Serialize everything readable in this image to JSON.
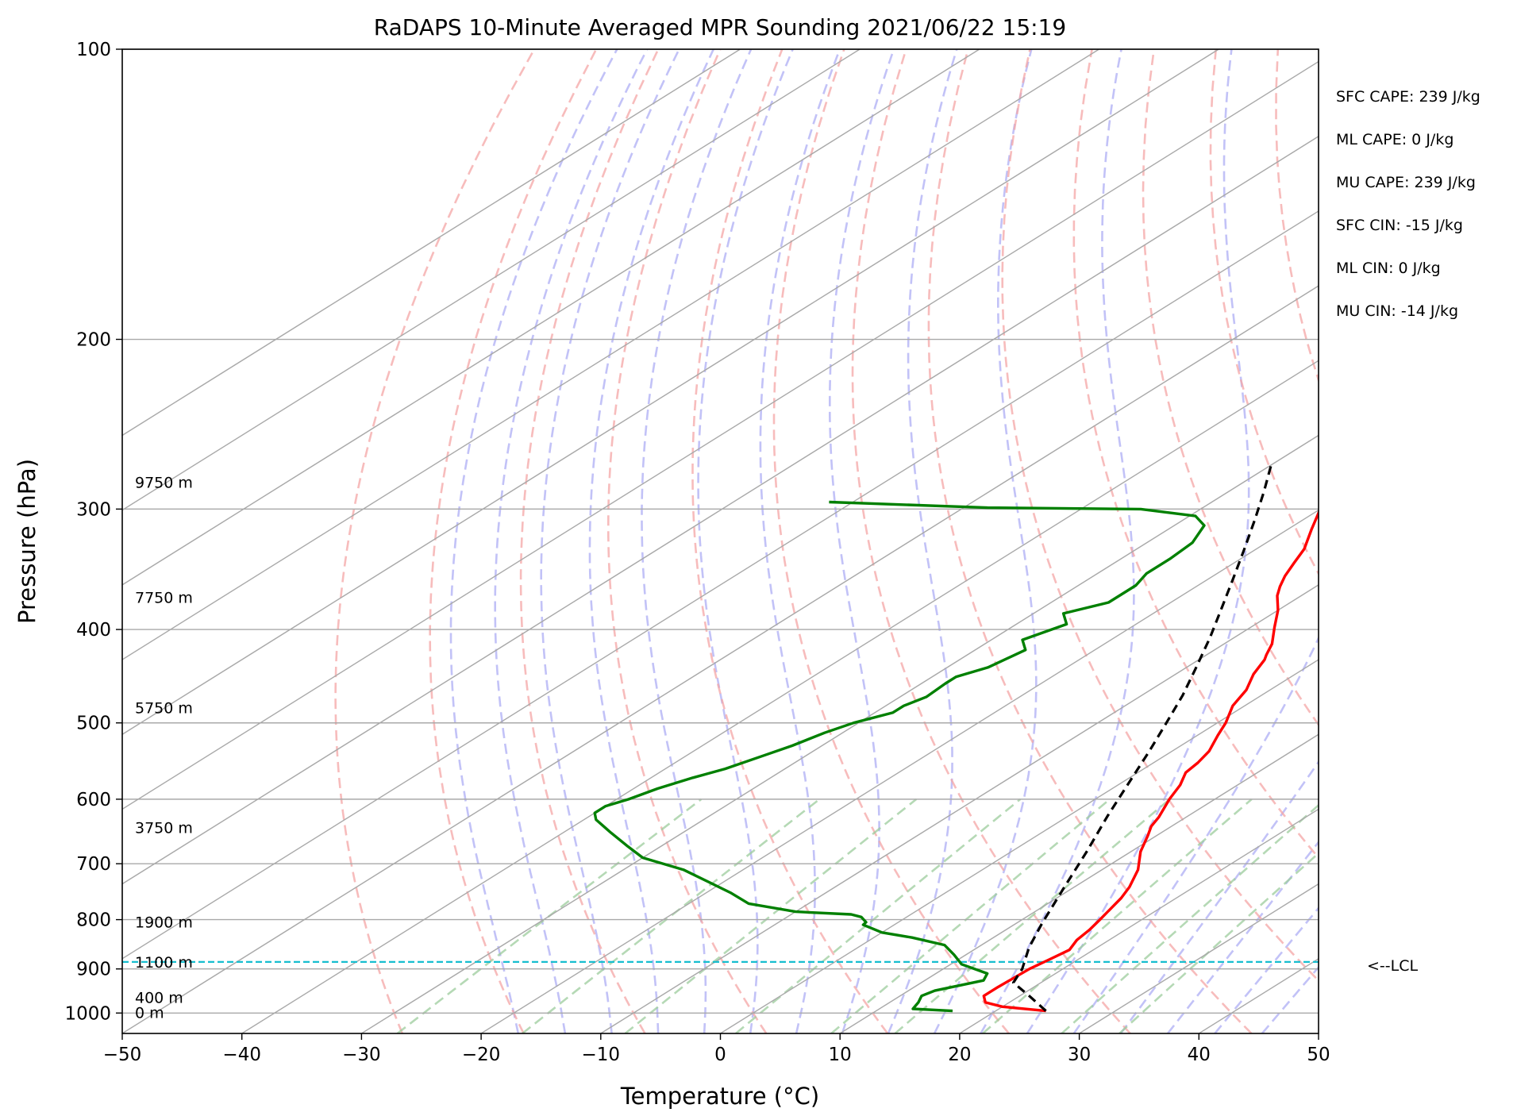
{
  "chart_data": {
    "type": "line",
    "title": "RaDAPS 10-Minute Averaged MPR Sounding 2021/06/22 15:19",
    "xlabel": "Temperature (°C)",
    "ylabel": "Pressure (hPa)",
    "xlim": [
      -50,
      50
    ],
    "ylim": [
      1050,
      100
    ],
    "y_scale": "log",
    "skew": "skew-T log-p",
    "grid": true,
    "x_ticks": [
      "−50",
      "−40",
      "−30",
      "−20",
      "−10",
      "0",
      "10",
      "20",
      "30",
      "40",
      "50"
    ],
    "x_tick_values": [
      -50,
      -40,
      -30,
      -20,
      -10,
      0,
      10,
      20,
      30,
      40,
      50
    ],
    "y_ticks": [
      "100",
      "200",
      "300",
      "400",
      "500",
      "600",
      "700",
      "800",
      "900",
      "1000"
    ],
    "y_tick_values": [
      100,
      200,
      300,
      400,
      500,
      600,
      700,
      800,
      900,
      1000
    ],
    "colors": {
      "temperature": "#ff0000",
      "dewpoint": "#008000",
      "parcel": "#000000",
      "lcl": "#17becf",
      "dry_adiabat": "#f4a6a6",
      "moist_adiabat": "#a8a8f4",
      "mixing_ratio": "#9ccc9c",
      "isotherm": "#a9a9a9"
    },
    "series": [
      {
        "role": "temperature",
        "points": [
          [
            24.2,
            995
          ],
          [
            20,
            985
          ],
          [
            18,
            975
          ],
          [
            17,
            960
          ],
          [
            17,
            940
          ],
          [
            17.1,
            920
          ],
          [
            17.2,
            900
          ],
          [
            17.6,
            880
          ],
          [
            18,
            860
          ],
          [
            17.3,
            840
          ],
          [
            17,
            820
          ],
          [
            16.5,
            800
          ],
          [
            15.4,
            760
          ],
          [
            14.6,
            740
          ],
          [
            13,
            710
          ],
          [
            10.8,
            680
          ],
          [
            9.3,
            655
          ],
          [
            8.3,
            640
          ],
          [
            7.7,
            626
          ],
          [
            6.2,
            600
          ],
          [
            5.2,
            580
          ],
          [
            4,
            563
          ],
          [
            3.7,
            550
          ],
          [
            3.1,
            535
          ],
          [
            1.7,
            515
          ],
          [
            0.7,
            500
          ],
          [
            -1,
            480
          ],
          [
            -2,
            462
          ],
          [
            -3.5,
            445
          ],
          [
            -4.5,
            430
          ],
          [
            -5,
            425
          ],
          [
            -6,
            414
          ],
          [
            -8,
            398
          ],
          [
            -10,
            382
          ],
          [
            -12,
            369
          ],
          [
            -13,
            361
          ],
          [
            -14,
            352
          ],
          [
            -15,
            341
          ],
          [
            -16,
            330
          ],
          [
            -18,
            315
          ],
          [
            -20,
            300
          ],
          [
            -22,
            283
          ],
          [
            -24,
            272
          ]
        ]
      },
      {
        "role": "dewpoint",
        "points": [
          [
            16.4,
            995
          ],
          [
            12.8,
            990
          ],
          [
            12.4,
            975
          ],
          [
            11.8,
            960
          ],
          [
            12.2,
            948
          ],
          [
            14.9,
            925
          ],
          [
            14.3,
            910
          ],
          [
            10.9,
            890
          ],
          [
            9,
            870
          ],
          [
            6.9,
            850
          ],
          [
            3.2,
            835
          ],
          [
            0,
            825
          ],
          [
            -2.6,
            810
          ],
          [
            -2.7,
            805
          ],
          [
            -3.8,
            795
          ],
          [
            -5,
            790
          ],
          [
            -10,
            785
          ],
          [
            -15,
            770
          ],
          [
            -18,
            750
          ],
          [
            -25,
            710
          ],
          [
            -30,
            690
          ],
          [
            -33,
            670
          ],
          [
            -36,
            650
          ],
          [
            -39,
            630
          ],
          [
            -40,
            620
          ],
          [
            -40,
            610
          ],
          [
            -39,
            600
          ],
          [
            -38,
            585
          ],
          [
            -36.5,
            570
          ],
          [
            -35,
            558
          ],
          [
            -33.5,
            540
          ],
          [
            -32.5,
            528
          ],
          [
            -31.5,
            512
          ],
          [
            -30.4,
            500
          ],
          [
            -28.5,
            488
          ],
          [
            -28.5,
            480
          ],
          [
            -27.8,
            470
          ],
          [
            -28,
            455
          ],
          [
            -28,
            448
          ],
          [
            -26.6,
            438
          ],
          [
            -25.8,
            420
          ],
          [
            -27.4,
            410
          ],
          [
            -25.8,
            395
          ],
          [
            -27.5,
            385
          ],
          [
            -25.2,
            375
          ],
          [
            -25.2,
            360
          ],
          [
            -25.9,
            350
          ],
          [
            -25.9,
            338
          ],
          [
            -26.2,
            325
          ],
          [
            -27.5,
            312
          ],
          [
            -29.5,
            305
          ],
          [
            -35,
            300
          ],
          [
            -48,
            299
          ],
          [
            -62,
            295
          ]
        ]
      },
      {
        "role": "parcel",
        "points": [
          [
            24.2,
            995
          ],
          [
            21,
            962
          ],
          [
            17.7,
            930
          ],
          [
            16.6,
            900
          ],
          [
            14.3,
            855
          ],
          [
            12.2,
            808
          ],
          [
            9.4,
            745
          ],
          [
            6.3,
            680
          ],
          [
            3.3,
            625
          ],
          [
            0.8,
            580
          ],
          [
            -1.9,
            535
          ],
          [
            -4.4,
            498
          ],
          [
            -6.6,
            468
          ],
          [
            -9,
            440
          ],
          [
            -12,
            408
          ],
          [
            -15,
            380
          ],
          [
            -18,
            354
          ],
          [
            -21,
            330
          ],
          [
            -24,
            308
          ],
          [
            -27,
            288
          ],
          [
            -30,
            270
          ]
        ]
      }
    ],
    "lcl_pressure": 885,
    "lcl_label": "<--LCL",
    "height_labels": [
      {
        "text": "0 m",
        "p": 1000
      },
      {
        "text": "400 m",
        "p": 965
      },
      {
        "text": "1100 m",
        "p": 887
      },
      {
        "text": "1900 m",
        "p": 806
      },
      {
        "text": "3750 m",
        "p": 643
      },
      {
        "text": "5750 m",
        "p": 483
      },
      {
        "text": "7750 m",
        "p": 371
      },
      {
        "text": "9750 m",
        "p": 282
      }
    ],
    "stats": [
      "SFC CAPE: 239 J/kg",
      "ML CAPE: 0 J/kg",
      "MU CAPE: 239 J/kg",
      "SFC CIN: -15 J/kg",
      "ML CIN: 0 J/kg",
      "MU CIN: -14 J/kg"
    ]
  }
}
